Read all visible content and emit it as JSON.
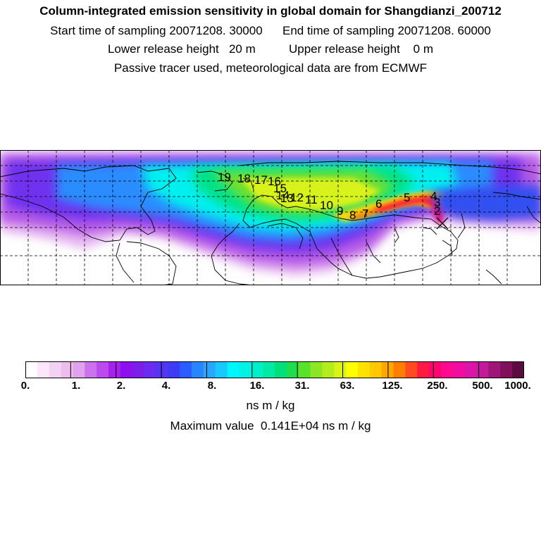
{
  "header": {
    "title": "Column-integrated emission sensitivity in global domain for Shangdianzi_200712",
    "line1": "Start time of sampling 20071208. 30000      End time of sampling 20071208. 60000",
    "line2": "Lower release height   20 m          Upper release height    0 m",
    "line3": "Passive tracer used, meteorological data are from ECMWF"
  },
  "map": {
    "trajectory_labels": [
      "19",
      "18",
      "17",
      "16",
      "15",
      "14",
      "13",
      "12",
      "11",
      "10",
      "9",
      "8",
      "7",
      "6",
      "5",
      "4",
      "3",
      "2"
    ],
    "station_marker": "x-marker"
  },
  "colorbar": {
    "tick_labels": [
      "0.",
      "1.",
      "2.",
      "4.",
      "8.",
      "16.",
      "31.",
      "63.",
      "125.",
      "250.",
      "500.",
      "1000."
    ],
    "colors": [
      "#ffffff",
      "#fbe6fb",
      "#f4d2f4",
      "#eebdee",
      "#e1a2ec",
      "#cc72ee",
      "#bb4bee",
      "#a822ee",
      "#8d11ee",
      "#7a1ee8",
      "#6a2cef",
      "#5336f2",
      "#3c3cf4",
      "#2a5cff",
      "#2a86ff",
      "#2aa6ff",
      "#18c8ff",
      "#00f5ff",
      "#00f2e6",
      "#00eec8",
      "#00eaa6",
      "#00e07a",
      "#22dc4e",
      "#58e228",
      "#8ce625",
      "#b4ec1c",
      "#d8f21a",
      "#ffff00",
      "#ffe200",
      "#ffc800",
      "#ffa600",
      "#ff7e00",
      "#ff4a22",
      "#ff1842",
      "#ff066e",
      "#ff0a8e",
      "#f00ea2",
      "#da16a6",
      "#c21a9a",
      "#a01678",
      "#80105c",
      "#5c0a40"
    ],
    "unit": "ns m / kg"
  },
  "max_value_text": "Maximum value  0.141E+04 ns m / kg"
}
